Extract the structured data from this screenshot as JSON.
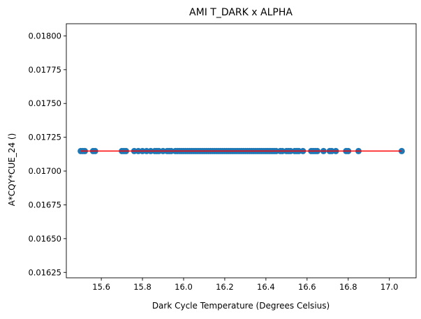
{
  "chart_data": {
    "type": "scatter",
    "title": "AMI T_DARK x ALPHA",
    "xlabel": "Dark Cycle Temperature (Degrees Celsius)",
    "ylabel": "A*CQY*CUE_24 ()",
    "xlim": [
      15.43,
      17.13
    ],
    "ylim": [
      0.01621,
      0.01809
    ],
    "xticks": [
      15.6,
      15.8,
      16.0,
      16.2,
      16.4,
      16.6,
      16.8,
      17.0
    ],
    "xtick_labels": [
      "15.6",
      "15.8",
      "16.0",
      "16.2",
      "16.4",
      "16.6",
      "16.8",
      "17.0"
    ],
    "yticks": [
      0.01625,
      0.0165,
      0.01675,
      0.017,
      0.01725,
      0.0175,
      0.01775,
      0.018
    ],
    "ytick_labels": [
      "0.01625",
      "0.01650",
      "0.01675",
      "0.01700",
      "0.01725",
      "0.01750",
      "0.01775",
      "0.01800"
    ],
    "grid": false,
    "series": [
      {
        "kind": "scatter",
        "color": "#1f77b4",
        "x": [
          15.5,
          15.51,
          15.52,
          15.56,
          15.57,
          15.7,
          15.71,
          15.72,
          15.76,
          15.78,
          15.8,
          15.82,
          15.84,
          15.86,
          15.87,
          15.88,
          15.9,
          15.92,
          15.93,
          15.94,
          15.96,
          15.97,
          15.98,
          15.99,
          16.0,
          16.01,
          16.02,
          16.03,
          16.04,
          16.05,
          16.06,
          16.07,
          16.08,
          16.09,
          16.1,
          16.11,
          16.12,
          16.13,
          16.14,
          16.15,
          16.16,
          16.17,
          16.18,
          16.19,
          16.2,
          16.21,
          16.22,
          16.23,
          16.24,
          16.25,
          16.26,
          16.27,
          16.28,
          16.29,
          16.3,
          16.31,
          16.32,
          16.33,
          16.34,
          16.35,
          16.36,
          16.37,
          16.38,
          16.39,
          16.4,
          16.41,
          16.42,
          16.43,
          16.44,
          16.45,
          16.47,
          16.48,
          16.5,
          16.51,
          16.52,
          16.54,
          16.55,
          16.56,
          16.58,
          16.62,
          16.63,
          16.64,
          16.65,
          16.68,
          16.71,
          16.72,
          16.74,
          16.79,
          16.8,
          16.85,
          17.06
        ],
        "y_constant": 0.017148
      },
      {
        "kind": "line",
        "color": "#ff0000",
        "x": [
          15.5,
          17.06
        ],
        "y": [
          0.017148,
          0.017148
        ]
      }
    ]
  }
}
